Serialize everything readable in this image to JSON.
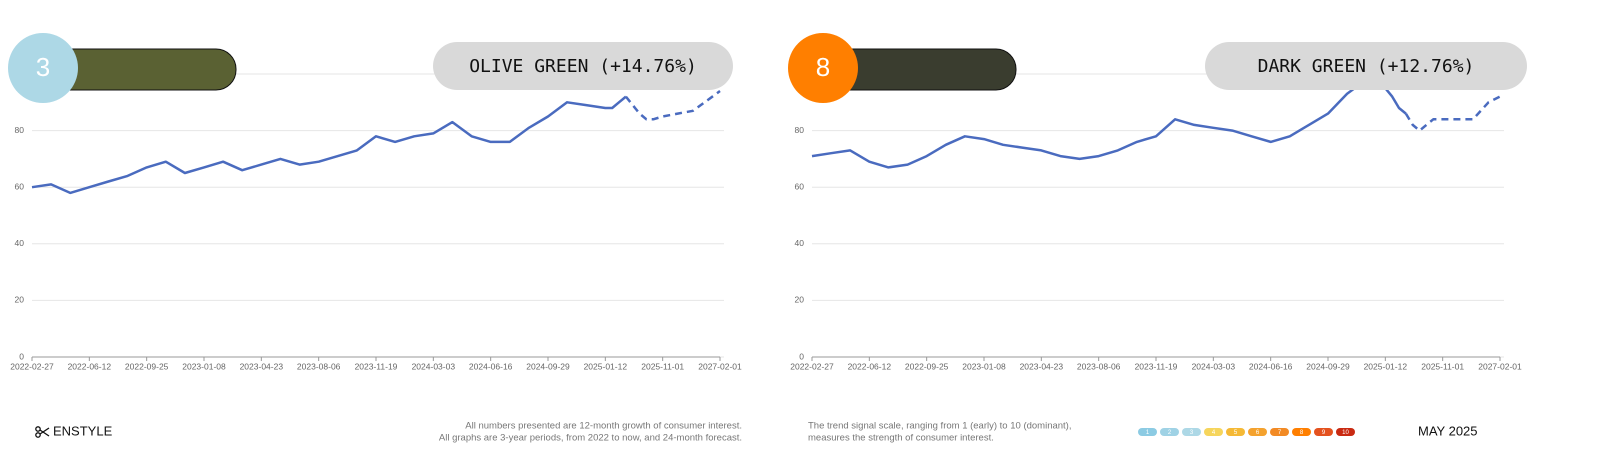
{
  "chart_data": [
    {
      "type": "line",
      "rank": 3,
      "title": "OLIVE GREEN (+14.76%)",
      "swatch_color": "#5a6133",
      "x": [
        "2022-02-27",
        "2022-04-03",
        "2022-05-08",
        "2022-06-12",
        "2022-07-17",
        "2022-08-21",
        "2022-09-25",
        "2022-10-30",
        "2022-12-04",
        "2023-01-08",
        "2023-02-12",
        "2023-03-19",
        "2023-04-23",
        "2023-05-28",
        "2023-07-02",
        "2023-08-06",
        "2023-09-10",
        "2023-10-15",
        "2023-11-19",
        "2023-12-24",
        "2024-01-28",
        "2024-03-03",
        "2024-04-07",
        "2024-05-12",
        "2024-06-16",
        "2024-07-21",
        "2024-08-25",
        "2024-09-29",
        "2024-11-03",
        "2024-12-08",
        "2025-01-12",
        "2025-02-16",
        "2025-03-23",
        "2025-04-27",
        "2025-06-01",
        "2025-07-06",
        "2025-08-10",
        "2025-09-14",
        "2025-11-01",
        "2026-03-01",
        "2026-07-01",
        "2026-11-01",
        "2027-02-01"
      ],
      "series": [
        {
          "color": "#4a6bbf",
          "dashed": false,
          "values": [
            60,
            61,
            58,
            60,
            62,
            64,
            67,
            69,
            65,
            67,
            69,
            66,
            68,
            70,
            68,
            69,
            71,
            73,
            78,
            76,
            78,
            79,
            83,
            78,
            76,
            76,
            81,
            85,
            90,
            89,
            88,
            88,
            90,
            92,
            null,
            null,
            null,
            null,
            null,
            null,
            null,
            null,
            null
          ]
        },
        {
          "color": "#4a6bbf",
          "dashed": true,
          "values": [
            null,
            null,
            null,
            null,
            null,
            null,
            null,
            null,
            null,
            null,
            null,
            null,
            null,
            null,
            null,
            null,
            null,
            null,
            null,
            null,
            null,
            null,
            null,
            null,
            null,
            null,
            null,
            null,
            null,
            null,
            null,
            null,
            null,
            92,
            89,
            86,
            84,
            84,
            85,
            86,
            87,
            91,
            94
          ]
        }
      ],
      "xlim": [
        "2022-02-27",
        "2027-02-01"
      ],
      "xticks": [
        "2022-02-27",
        "2022-06-12",
        "2022-09-25",
        "2023-01-08",
        "2023-04-23",
        "2023-08-06",
        "2023-11-19",
        "2024-03-03",
        "2024-06-16",
        "2024-09-29",
        "2025-01-12",
        "2025-11-01",
        "2027-02-01"
      ],
      "ylim": [
        0,
        100
      ],
      "yticks": [
        0,
        20,
        40,
        60,
        80
      ],
      "grid": true
    },
    {
      "type": "line",
      "rank": 8,
      "title": "DARK GREEN (+12.76%)",
      "swatch_color": "#3a3d2f",
      "x": [
        "2022-02-27",
        "2022-04-03",
        "2022-05-08",
        "2022-06-12",
        "2022-07-17",
        "2022-08-21",
        "2022-09-25",
        "2022-10-30",
        "2022-12-04",
        "2023-01-08",
        "2023-02-12",
        "2023-03-19",
        "2023-04-23",
        "2023-05-28",
        "2023-07-02",
        "2023-08-06",
        "2023-09-10",
        "2023-10-15",
        "2023-11-19",
        "2023-12-24",
        "2024-01-28",
        "2024-03-03",
        "2024-04-07",
        "2024-05-12",
        "2024-06-16",
        "2024-07-21",
        "2024-08-25",
        "2024-09-29",
        "2024-11-03",
        "2024-12-08",
        "2025-01-12",
        "2025-02-16",
        "2025-03-23",
        "2025-04-27",
        "2025-06-01",
        "2025-07-06",
        "2025-08-10",
        "2025-09-14",
        "2025-11-01",
        "2026-03-01",
        "2026-07-01",
        "2026-11-01",
        "2027-02-01"
      ],
      "series": [
        {
          "color": "#4a6bbf",
          "dashed": false,
          "values": [
            71,
            72,
            73,
            69,
            67,
            68,
            71,
            75,
            78,
            77,
            75,
            74,
            73,
            71,
            70,
            71,
            73,
            76,
            78,
            84,
            82,
            81,
            80,
            78,
            76,
            78,
            82,
            86,
            93,
            98,
            95,
            92,
            88,
            86,
            null,
            null,
            null,
            null,
            null,
            null,
            null,
            null,
            null
          ]
        },
        {
          "color": "#4a6bbf",
          "dashed": true,
          "values": [
            null,
            null,
            null,
            null,
            null,
            null,
            null,
            null,
            null,
            null,
            null,
            null,
            null,
            null,
            null,
            null,
            null,
            null,
            null,
            null,
            null,
            null,
            null,
            null,
            null,
            null,
            null,
            null,
            null,
            null,
            null,
            null,
            null,
            86,
            82,
            80,
            82,
            84,
            84,
            84,
            84,
            90,
            92
          ]
        }
      ],
      "xlim": [
        "2022-02-27",
        "2027-02-01"
      ],
      "xticks": [
        "2022-02-27",
        "2022-06-12",
        "2022-09-25",
        "2023-01-08",
        "2023-04-23",
        "2023-08-06",
        "2023-11-19",
        "2024-03-03",
        "2024-06-16",
        "2024-09-29",
        "2025-01-12",
        "2025-11-01",
        "2027-02-01"
      ],
      "ylim": [
        0,
        100
      ],
      "yticks": [
        0,
        20,
        40,
        60,
        80
      ],
      "grid": true
    }
  ],
  "footer": {
    "brand": "ENSTYLE",
    "notes": [
      "All numbers presented are 12-month growth of consumer interest.",
      "All graphs are 3-year periods, from 2022 to now, and 24-month forecast."
    ],
    "scale_note": [
      "The trend signal scale, ranging from 1 (early) to 10 (dominant),",
      "measures the strength of consumer interest."
    ],
    "scale": [
      {
        "label": 1,
        "color": "#8ccbe3"
      },
      {
        "label": 2,
        "color": "#9fd2e5"
      },
      {
        "label": 3,
        "color": "#add8e6"
      },
      {
        "label": 4,
        "color": "#f6d55c"
      },
      {
        "label": 5,
        "color": "#f5b935"
      },
      {
        "label": 6,
        "color": "#f4a22e"
      },
      {
        "label": 7,
        "color": "#f28a24"
      },
      {
        "label": 8,
        "color": "#ff7f00"
      },
      {
        "label": 9,
        "color": "#e4521f"
      },
      {
        "label": 10,
        "color": "#c92a12"
      }
    ],
    "date": "MAY 2025"
  }
}
